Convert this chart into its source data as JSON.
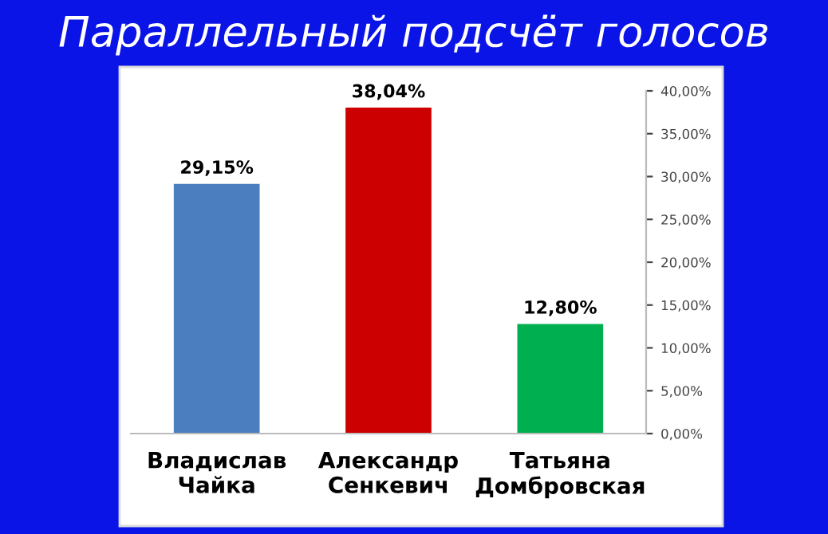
{
  "chart_data": {
    "type": "bar",
    "title": "Параллельный подсчёт голосов",
    "categories": [
      "Владислав\nЧайка",
      "Александр\nСенкевич",
      "Татьяна\nДомбровская"
    ],
    "values": [
      29.15,
      38.04,
      12.8
    ],
    "colors": [
      "#4a7ebf",
      "#cc0000",
      "#00b050"
    ],
    "value_labels": [
      "29,15%",
      "38,04%",
      "12,80%"
    ],
    "ylim": [
      0,
      40
    ],
    "yticks": [
      {
        "value": 0,
        "label": "0,00%"
      },
      {
        "value": 5,
        "label": "5,00%"
      },
      {
        "value": 10,
        "label": "10,00%"
      },
      {
        "value": 15,
        "label": "15,00%"
      },
      {
        "value": 20,
        "label": "20,00%"
      },
      {
        "value": 25,
        "label": "25,00%"
      },
      {
        "value": 30,
        "label": "30,00%"
      },
      {
        "value": 35,
        "label": "35,00%"
      },
      {
        "value": 40,
        "label": "40,00%"
      }
    ],
    "grid": false,
    "legend": false
  }
}
